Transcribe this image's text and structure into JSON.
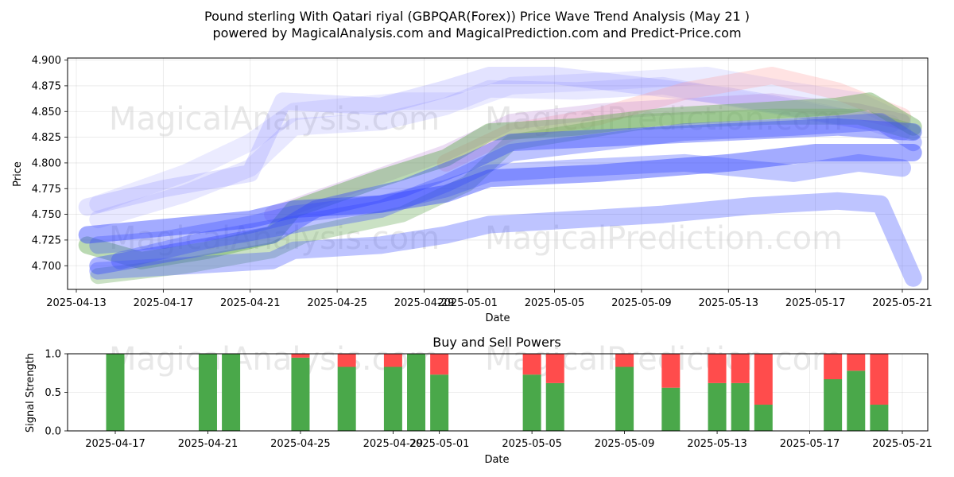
{
  "chart_data": [
    {
      "type": "line",
      "title_line1": "Pound sterling With Qatari riyal (GBPQAR(Forex)) Price Wave Trend Analysis (May 21 )",
      "title_line2": "powered by MagicalAnalysis.com and MagicalPrediction.com and Predict-Price.com",
      "xlabel": "Date",
      "ylabel": "Price",
      "ylim": [
        4.677,
        4.902
      ],
      "y_ticks": [
        "4.700",
        "4.725",
        "4.750",
        "4.775",
        "4.800",
        "4.825",
        "4.850",
        "4.875",
        "4.900"
      ],
      "x_ticks": [
        "2025-04-13",
        "2025-04-17",
        "2025-04-21",
        "2025-04-25",
        "2025-04-29",
        "2025-05-01",
        "2025-05-05",
        "2025-05-09",
        "2025-05-13",
        "2025-05-17",
        "2025-05-21"
      ],
      "grid": true,
      "watermarks": [
        "MagicalAnalysis.com",
        "MagicalPrediction.com",
        "MagicalAnalysis.com",
        "MagicalPrediction.com"
      ],
      "series": [
        {
          "name": "wave-blue-upper-1",
          "color": "#6666ff",
          "opacity": 0.18,
          "width": 22,
          "x": [
            0.5,
            4,
            8,
            9.5,
            14,
            17,
            19,
            22,
            26,
            30,
            34,
            36.5,
            38
          ],
          "y": [
            4.757,
            4.775,
            4.79,
            4.86,
            4.855,
            4.872,
            4.885,
            4.885,
            4.875,
            4.865,
            4.85,
            4.84,
            4.83
          ]
        },
        {
          "name": "wave-blue-upper-2",
          "color": "#6666ff",
          "opacity": 0.15,
          "width": 22,
          "x": [
            1,
            5,
            8,
            10,
            14,
            17,
            19,
            23,
            27,
            31,
            35,
            37.5
          ],
          "y": [
            4.745,
            4.77,
            4.795,
            4.835,
            4.84,
            4.855,
            4.872,
            4.87,
            4.875,
            4.86,
            4.845,
            4.838
          ]
        },
        {
          "name": "wave-blue-upper-3",
          "color": "#6666ff",
          "opacity": 0.13,
          "width": 22,
          "x": [
            1,
            5,
            8,
            10,
            15,
            18,
            20,
            25,
            29,
            33,
            36,
            38
          ],
          "y": [
            4.76,
            4.79,
            4.82,
            4.85,
            4.86,
            4.86,
            4.875,
            4.88,
            4.885,
            4.87,
            4.86,
            4.84
          ]
        },
        {
          "name": "wave-pink",
          "color": "#ff9999",
          "opacity": 0.28,
          "width": 22,
          "x": [
            17,
            20,
            24,
            28,
            32,
            35,
            38
          ],
          "y": [
            4.8,
            4.83,
            4.845,
            4.87,
            4.885,
            4.87,
            4.845
          ]
        },
        {
          "name": "wave-purple",
          "color": "#aa66cc",
          "opacity": 0.22,
          "width": 20,
          "x": [
            9,
            13,
            17,
            20,
            24,
            28,
            32,
            36,
            38
          ],
          "y": [
            4.75,
            4.78,
            4.81,
            4.84,
            4.85,
            4.855,
            4.86,
            4.85,
            4.84
          ]
        },
        {
          "name": "wave-green-1",
          "color": "#66aa55",
          "opacity": 0.45,
          "width": 22,
          "x": [
            0.5,
            3,
            6,
            9,
            10,
            14,
            17,
            19,
            23,
            27,
            31,
            35,
            36.5,
            38.5
          ],
          "y": [
            4.72,
            4.705,
            4.715,
            4.73,
            4.755,
            4.785,
            4.805,
            4.83,
            4.835,
            4.845,
            4.85,
            4.855,
            4.86,
            4.835
          ]
        },
        {
          "name": "wave-green-2",
          "color": "#66aa55",
          "opacity": 0.35,
          "width": 20,
          "x": [
            1,
            5,
            9,
            10.5,
            15,
            18,
            20,
            26,
            32,
            36,
            38.5
          ],
          "y": [
            4.69,
            4.7,
            4.715,
            4.73,
            4.75,
            4.78,
            4.82,
            4.84,
            4.845,
            4.845,
            4.83
          ]
        },
        {
          "name": "wave-blue-mid-1",
          "color": "#3344ff",
          "opacity": 0.45,
          "width": 22,
          "x": [
            0.5,
            4,
            8,
            10,
            14,
            17,
            19,
            24,
            30,
            34,
            38.5
          ],
          "y": [
            4.73,
            4.737,
            4.745,
            4.755,
            4.76,
            4.77,
            4.785,
            4.79,
            4.8,
            4.81,
            4.81
          ]
        },
        {
          "name": "wave-blue-mid-2",
          "color": "#3344ff",
          "opacity": 0.4,
          "width": 22,
          "x": [
            1,
            5,
            9,
            11,
            15,
            18,
            20,
            25,
            30,
            35,
            38.5
          ],
          "y": [
            4.7,
            4.715,
            4.73,
            4.755,
            4.775,
            4.8,
            4.82,
            4.825,
            4.83,
            4.835,
            4.83
          ]
        },
        {
          "name": "wave-blue-mid-3",
          "color": "#3344ff",
          "opacity": 0.32,
          "width": 22,
          "x": [
            2,
            6,
            10,
            14,
            17,
            20,
            24,
            28,
            33,
            37,
            38.5
          ],
          "y": [
            4.705,
            4.725,
            4.74,
            4.755,
            4.78,
            4.81,
            4.82,
            4.83,
            4.835,
            4.84,
            4.82
          ]
        },
        {
          "name": "wave-blue-lower",
          "color": "#4455ff",
          "opacity": 0.35,
          "width": 22,
          "x": [
            1,
            5,
            9,
            10,
            14,
            17,
            19,
            23,
            27,
            31,
            35,
            37,
            38.5
          ],
          "y": [
            4.695,
            4.7,
            4.705,
            4.715,
            4.72,
            4.73,
            4.74,
            4.745,
            4.75,
            4.758,
            4.763,
            4.76,
            4.688
          ]
        },
        {
          "name": "wave-blue-lower-2",
          "color": "#3344ff",
          "opacity": 0.3,
          "width": 22,
          "x": [
            1,
            4,
            8,
            10,
            14,
            17,
            19,
            23,
            28,
            33,
            36,
            38
          ],
          "y": [
            4.72,
            4.725,
            4.74,
            4.75,
            4.76,
            4.775,
            4.79,
            4.795,
            4.8,
            4.79,
            4.8,
            4.795
          ]
        }
      ]
    },
    {
      "type": "bar",
      "title": "Buy and Sell Powers",
      "xlabel": "Date",
      "ylabel": "Signal Strength",
      "ylim": [
        0,
        1
      ],
      "y_ticks": [
        "0.0",
        "0.5",
        "1.0"
      ],
      "x_ticks": [
        "2025-04-17",
        "2025-04-21",
        "2025-04-25",
        "2025-04-29",
        "2025-05-01",
        "2025-05-05",
        "2025-05-09",
        "2025-05-13",
        "2025-05-17",
        "2025-05-21"
      ],
      "buy_color": "#4aa84a",
      "sell_color": "#ff4c4c",
      "bars": [
        {
          "x": 0,
          "buy": 1.0,
          "sell": 0.0
        },
        {
          "x": 4,
          "buy": 1.0,
          "sell": 0.0
        },
        {
          "x": 5,
          "buy": 1.0,
          "sell": 0.0
        },
        {
          "x": 8,
          "buy": 0.95,
          "sell": 0.05
        },
        {
          "x": 10,
          "buy": 0.83,
          "sell": 0.17
        },
        {
          "x": 12,
          "buy": 0.83,
          "sell": 0.17
        },
        {
          "x": 13,
          "buy": 1.0,
          "sell": 0.0
        },
        {
          "x": 14,
          "buy": 0.73,
          "sell": 0.27
        },
        {
          "x": 18,
          "buy": 0.73,
          "sell": 0.27
        },
        {
          "x": 19,
          "buy": 0.62,
          "sell": 0.38
        },
        {
          "x": 22,
          "buy": 0.83,
          "sell": 0.17
        },
        {
          "x": 24,
          "buy": 0.56,
          "sell": 0.44
        },
        {
          "x": 26,
          "buy": 0.62,
          "sell": 0.38
        },
        {
          "x": 27,
          "buy": 0.62,
          "sell": 0.38
        },
        {
          "x": 28,
          "buy": 0.34,
          "sell": 0.66
        },
        {
          "x": 31,
          "buy": 0.67,
          "sell": 0.33
        },
        {
          "x": 32,
          "buy": 0.78,
          "sell": 0.22
        },
        {
          "x": 33,
          "buy": 0.34,
          "sell": 0.66
        }
      ]
    }
  ]
}
